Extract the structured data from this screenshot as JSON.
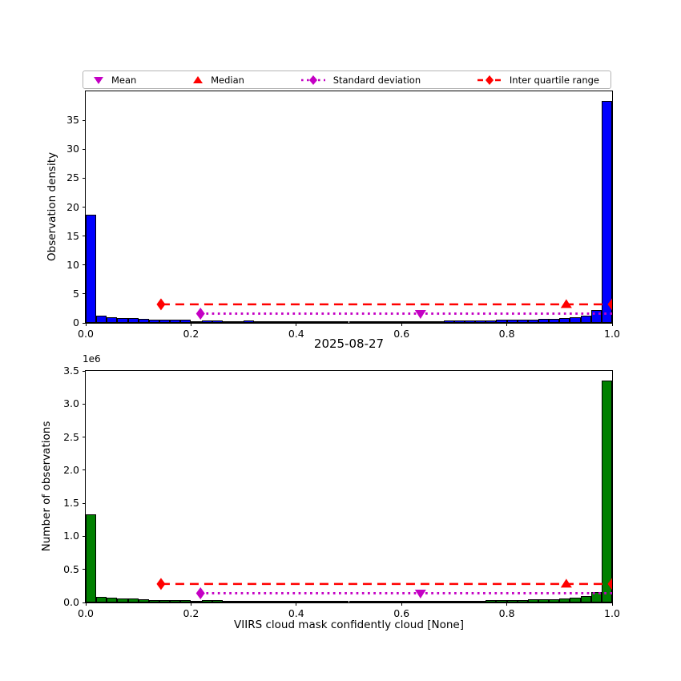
{
  "colors": {
    "blue": "#0000ff",
    "green": "#008000",
    "red": "#ff0000",
    "magenta": "#c400c4",
    "bar_edge": "#000000"
  },
  "legend": {
    "items": [
      {
        "label": "Mean",
        "marker": "triangle-down",
        "color_key": "magenta"
      },
      {
        "label": "Median",
        "marker": "triangle-up",
        "color_key": "red"
      },
      {
        "label": "Standard deviation",
        "marker": "diamond-dotted-line",
        "color_key": "magenta"
      },
      {
        "label": "Inter quartile range",
        "marker": "diamond-dashed-line",
        "color_key": "red"
      }
    ]
  },
  "chart_data": [
    {
      "type": "bar",
      "subtype": "histogram",
      "ylabel": "Observation density",
      "bar_color_key": "blue",
      "xlim": [
        0.0,
        1.0
      ],
      "ylim": [
        0,
        40
      ],
      "xticks": [
        0.0,
        0.2,
        0.4,
        0.6,
        0.8,
        1.0
      ],
      "xtick_labels": [
        "0.0",
        "0.2",
        "0.4",
        "0.6",
        "0.8",
        "1.0"
      ],
      "yticks": [
        0,
        5,
        10,
        15,
        20,
        25,
        30,
        35
      ],
      "ytick_labels": [
        "0",
        "5",
        "10",
        "15",
        "20",
        "25",
        "30",
        "35"
      ],
      "bin_start": 0.0,
      "bin_width": 0.02,
      "values": [
        18.7,
        1.3,
        0.95,
        0.85,
        0.85,
        0.7,
        0.55,
        0.5,
        0.5,
        0.55,
        0.3,
        0.45,
        0.45,
        0.3,
        0.3,
        0.35,
        0.3,
        0.25,
        0.25,
        0.3,
        0.25,
        0.25,
        0.3,
        0.25,
        0.25,
        0.15,
        0.2,
        0.2,
        0.15,
        0.2,
        0.2,
        0.25,
        0.25,
        0.3,
        0.35,
        0.4,
        0.4,
        0.4,
        0.45,
        0.5,
        0.5,
        0.55,
        0.6,
        0.65,
        0.75,
        0.85,
        1.0,
        1.3,
        2.2,
        38.4
      ],
      "markers": {
        "mean_x": 0.636,
        "median_x": 0.913,
        "std_line_x": [
          0.218,
          1.0
        ],
        "iqr_line_x": [
          0.143,
          1.0
        ],
        "std_line_y": 1.6,
        "iqr_line_y": 3.2
      },
      "grid": false
    },
    {
      "type": "bar",
      "subtype": "histogram",
      "title": "2025-08-27",
      "xlabel": "VIIRS cloud mask confidently cloud [None]",
      "ylabel": "Number of observations",
      "scale_label": "1e6",
      "bar_color_key": "green",
      "xlim": [
        0.0,
        1.0
      ],
      "ylim": [
        0,
        3.5
      ],
      "xticks": [
        0.0,
        0.2,
        0.4,
        0.6,
        0.8,
        1.0
      ],
      "xtick_labels": [
        "0.0",
        "0.2",
        "0.4",
        "0.6",
        "0.8",
        "1.0"
      ],
      "yticks": [
        0.0,
        0.5,
        1.0,
        1.5,
        2.0,
        2.5,
        3.0,
        3.5
      ],
      "ytick_labels": [
        "0.0",
        "0.5",
        "1.0",
        "1.5",
        "2.0",
        "2.5",
        "3.0",
        "3.5"
      ],
      "bin_start": 0.0,
      "bin_width": 0.02,
      "values": [
        1.33,
        0.09,
        0.07,
        0.06,
        0.06,
        0.05,
        0.04,
        0.04,
        0.04,
        0.04,
        0.022,
        0.032,
        0.032,
        0.022,
        0.022,
        0.025,
        0.022,
        0.018,
        0.018,
        0.022,
        0.018,
        0.018,
        0.022,
        0.018,
        0.018,
        0.011,
        0.014,
        0.014,
        0.011,
        0.014,
        0.014,
        0.018,
        0.018,
        0.022,
        0.025,
        0.029,
        0.029,
        0.029,
        0.032,
        0.036,
        0.036,
        0.04,
        0.043,
        0.047,
        0.054,
        0.061,
        0.072,
        0.094,
        0.16,
        3.35
      ],
      "markers": {
        "mean_x": 0.636,
        "median_x": 0.913,
        "std_line_x": [
          0.218,
          1.0
        ],
        "iqr_line_x": [
          0.143,
          1.0
        ],
        "std_line_y": 0.14,
        "iqr_line_y": 0.28
      },
      "grid": false
    }
  ]
}
